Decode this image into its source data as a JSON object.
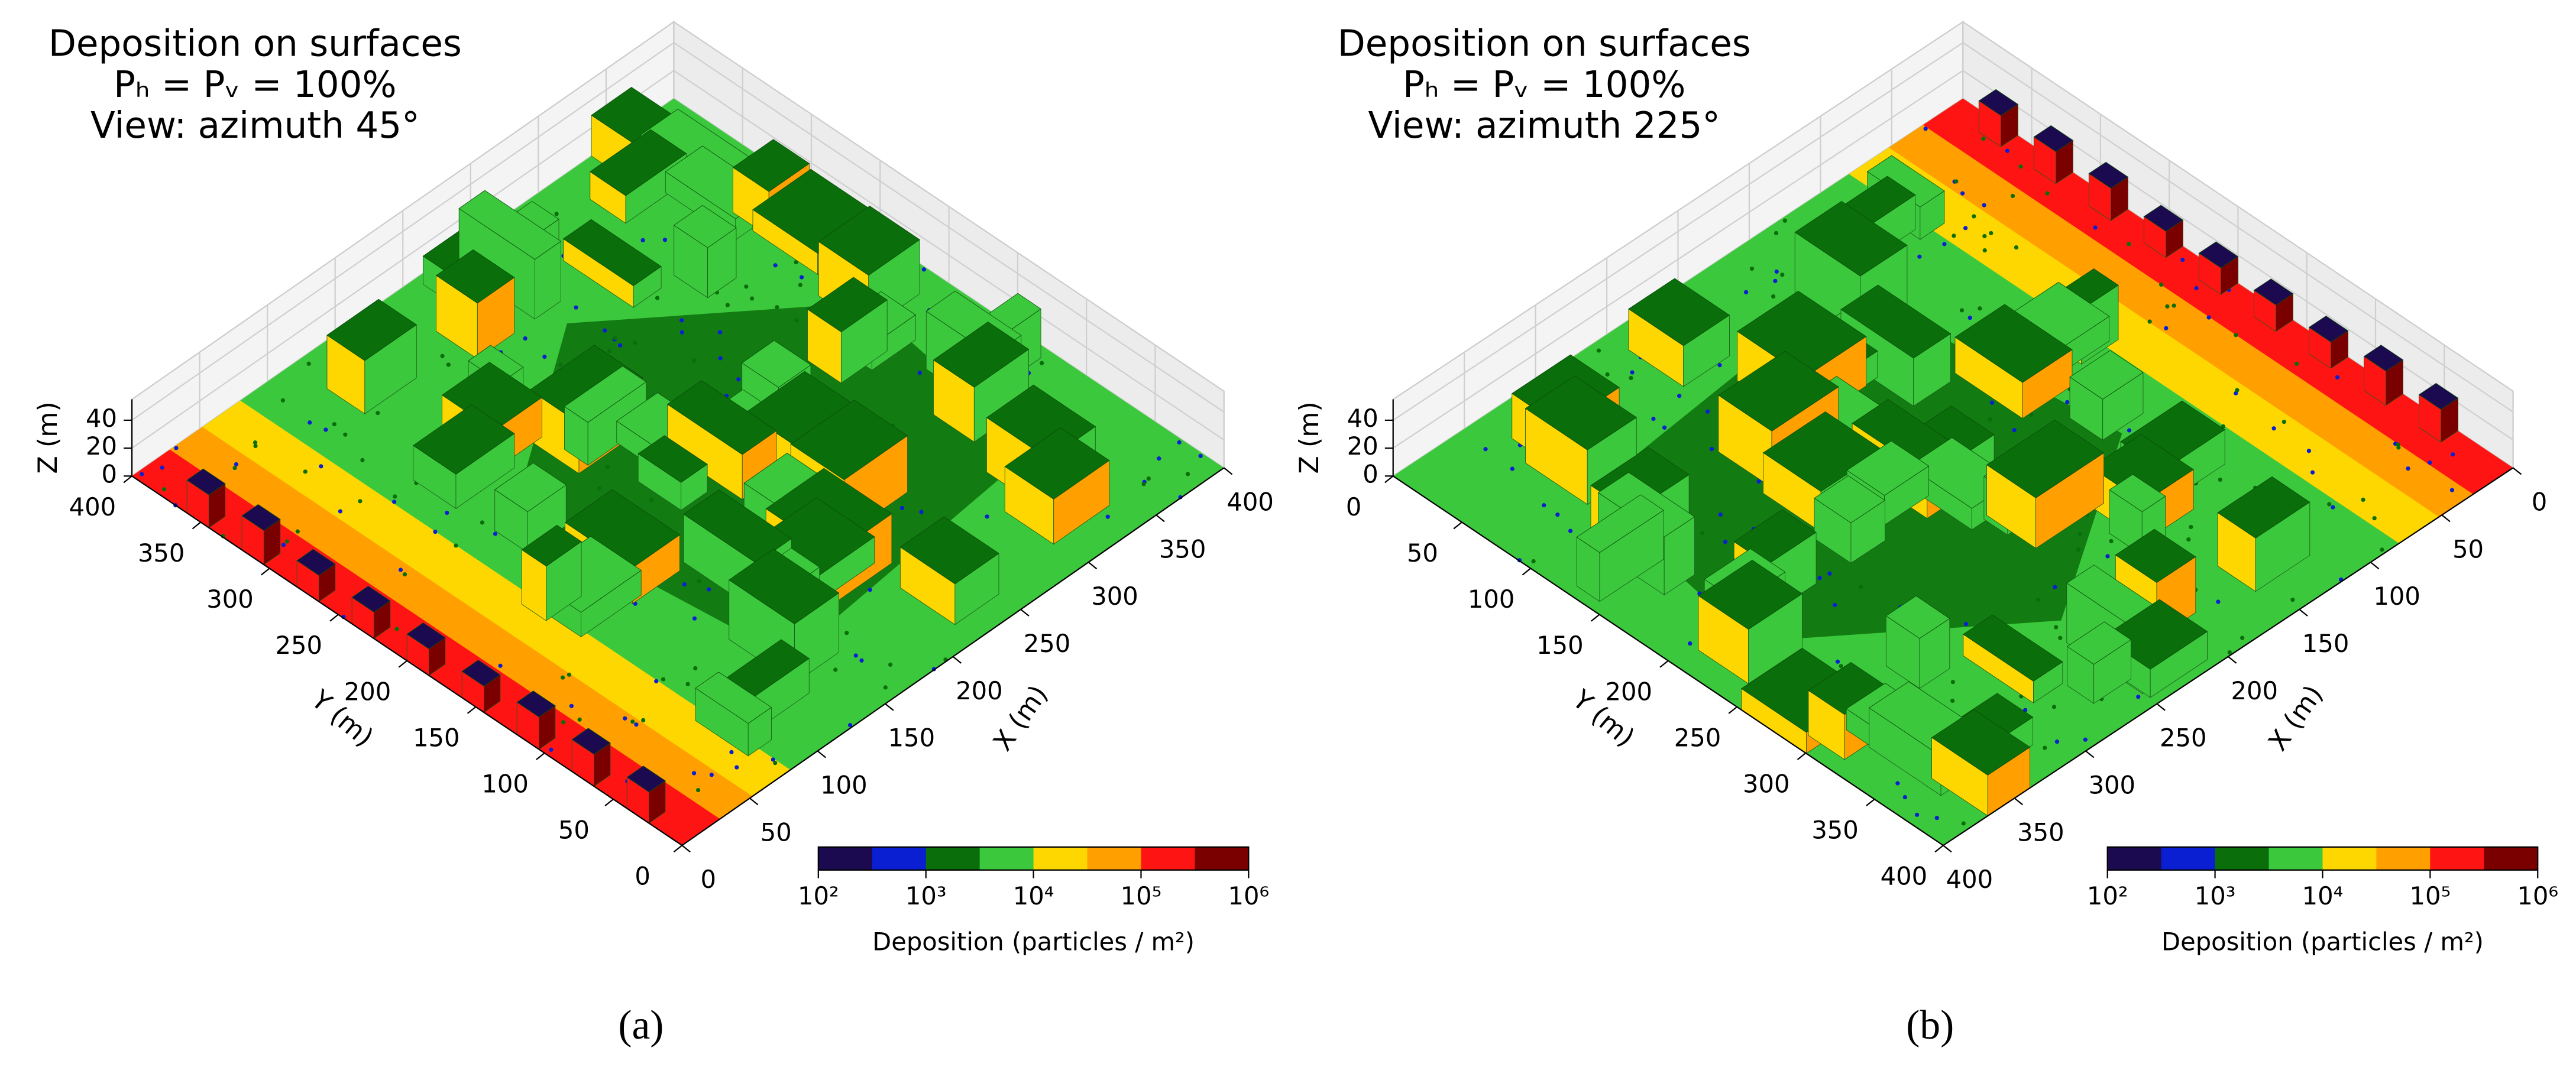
{
  "chart_data": [
    {
      "type": "surface3d",
      "title": [
        "Deposition on surfaces",
        "Pₕ = Pᵥ = 100%",
        "View: azimuth 45°"
      ],
      "xlabel": "X (m)",
      "ylabel": "Y (m)",
      "zlabel": "Z (m)",
      "xlim": [
        0,
        400
      ],
      "xticks": [
        0,
        50,
        100,
        150,
        200,
        250,
        300,
        350,
        400
      ],
      "ylim": [
        0,
        400
      ],
      "yticks": [
        0,
        50,
        100,
        150,
        200,
        250,
        300,
        350,
        400
      ],
      "zlim": [
        0,
        55
      ],
      "zticks": [
        0,
        20,
        40
      ],
      "colorbar": {
        "label": "Deposition (particles / m²)",
        "log": true,
        "lim": [
          100,
          1000000
        ],
        "ticks": [
          {
            "value": 100,
            "label": "10²"
          },
          {
            "value": 1000,
            "label": "10³"
          },
          {
            "value": 10000,
            "label": "10⁴"
          },
          {
            "value": 100000,
            "label": "10⁵"
          },
          {
            "value": 1000000,
            "label": "10⁶"
          }
        ],
        "colors": [
          "#1c0a50",
          "#0a1ed2",
          "#0a6e0a",
          "#3cc83c",
          "#ffd700",
          "#ffa000",
          "#ff1414",
          "#7a0000"
        ]
      },
      "caption": "(a)"
    },
    {
      "type": "surface3d",
      "title": [
        "Deposition on surfaces",
        "Pₕ = Pᵥ = 100%",
        "View: azimuth 225°"
      ],
      "xlabel": "X (m)",
      "ylabel": "Y (m)",
      "zlabel": "Z (m)",
      "xlim": [
        0,
        400
      ],
      "xticks": [
        0,
        50,
        100,
        150,
        200,
        250,
        300,
        350,
        400
      ],
      "ylim": [
        0,
        400
      ],
      "yticks": [
        0,
        50,
        100,
        150,
        200,
        250,
        300,
        350,
        400
      ],
      "zlim": [
        0,
        55
      ],
      "zticks": [
        0,
        20,
        40
      ],
      "colorbar": {
        "label": "Deposition (particles / m²)",
        "log": true,
        "lim": [
          100,
          1000000
        ],
        "ticks": [
          {
            "value": 100,
            "label": "10²"
          },
          {
            "value": 1000,
            "label": "10³"
          },
          {
            "value": 10000,
            "label": "10⁴"
          },
          {
            "value": 100000,
            "label": "10⁵"
          },
          {
            "value": 1000000,
            "label": "10⁶"
          }
        ],
        "colors": [
          "#1c0a50",
          "#0a1ed2",
          "#0a6e0a",
          "#3cc83c",
          "#ffd700",
          "#ffa000",
          "#ff1414",
          "#7a0000"
        ]
      },
      "caption": "(b)"
    }
  ]
}
